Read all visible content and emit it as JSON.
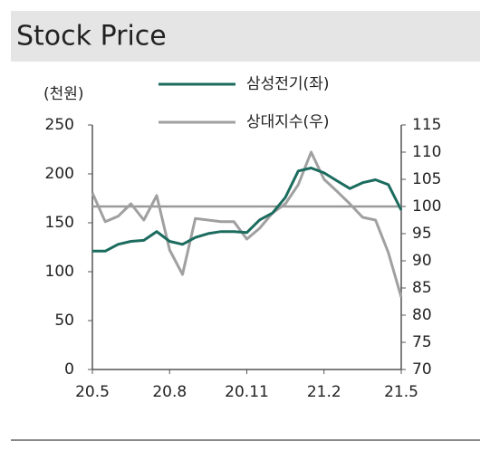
{
  "chart_data": {
    "type": "line",
    "title": "Stock Price",
    "ylabel": "(천원)",
    "x": [
      0,
      0.5,
      1,
      1.5,
      2,
      2.5,
      3,
      3.5,
      4,
      4.5,
      5,
      5.5,
      6,
      6.5,
      7,
      7.5,
      8,
      8.5,
      9,
      9.5,
      10,
      10.5,
      11,
      11.5,
      12
    ],
    "xlim": [
      0,
      12
    ],
    "xticks": [
      {
        "value": 0,
        "label": "20.5"
      },
      {
        "value": 3,
        "label": "20.8"
      },
      {
        "value": 6,
        "label": "20.11"
      },
      {
        "value": 9,
        "label": "21.2"
      },
      {
        "value": 12,
        "label": "21.5"
      }
    ],
    "ylim": [
      0,
      250
    ],
    "yticks": [
      0,
      50,
      100,
      150,
      200,
      250
    ],
    "y2lim": [
      70,
      115
    ],
    "y2ticks": [
      70,
      75,
      80,
      85,
      90,
      95,
      100,
      105,
      110,
      115
    ],
    "y2_reference": 100,
    "series": [
      {
        "name": "삼성전기(좌)",
        "color": "#1b6b5f",
        "values": [
          121,
          121,
          128,
          131,
          132,
          141,
          131,
          128,
          135,
          139,
          141,
          141,
          140,
          153,
          160,
          176,
          203,
          206,
          201,
          193,
          185,
          191,
          194,
          189,
          163
        ]
      },
      {
        "name": "상대지수(우)",
        "color": "#a0a0a0",
        "axis": "y2",
        "values": [
          102.5,
          97.2,
          98.2,
          100.5,
          97.5,
          102,
          92,
          87.5,
          97.8,
          97.5,
          97.2,
          97.2,
          94,
          96,
          98.8,
          100.5,
          104,
          110,
          105,
          102.8,
          100.5,
          98,
          97.5,
          91.5,
          83.3
        ]
      }
    ],
    "grid": false
  }
}
